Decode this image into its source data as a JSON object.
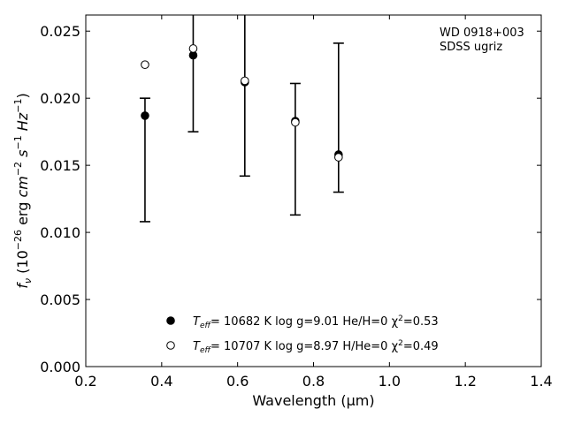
{
  "chart_data": {
    "type": "scatter",
    "title": "",
    "xlabel": "Wavelength (μm)",
    "ylabel": "f_ν (10^-26 erg cm^-2 s^-1 Hz^-1)",
    "xlim": [
      0.2,
      1.4
    ],
    "ylim": [
      0.0,
      0.0262
    ],
    "xticks": [
      "0.2",
      "0.4",
      "0.6",
      "0.8",
      "1.0",
      "1.2",
      "1.4"
    ],
    "yticks": [
      "0.000",
      "0.005",
      "0.010",
      "0.015",
      "0.020",
      "0.025"
    ],
    "annotation": [
      "WD 0918+003",
      "SDSS ugriz"
    ],
    "observed": {
      "x": [
        0.356,
        0.483,
        0.619,
        0.752,
        0.866
      ],
      "y": [
        0.0187,
        0.0232,
        0.0212,
        0.0183,
        0.0158
      ],
      "yerr_low": [
        0.0108,
        0.0175,
        0.0142,
        0.0113,
        0.013
      ],
      "yerr_high": [
        0.02,
        0.029,
        0.029,
        0.0211,
        0.0241
      ]
    },
    "series": [
      {
        "name": "T_eff= 10682 K  log g=9.01  He/H=0  χ²=0.53",
        "marker": "filled-circle",
        "y": [
          0.0187,
          0.0232,
          0.0212,
          0.0183,
          0.0158
        ]
      },
      {
        "name": "T_eff= 10707 K  log g=8.97  H/He=0  χ²=0.49",
        "marker": "open-circle",
        "y": [
          0.0225,
          0.0237,
          0.0213,
          0.0182,
          0.0156
        ]
      }
    ],
    "legend_position": "bottom-center",
    "grid": false
  }
}
